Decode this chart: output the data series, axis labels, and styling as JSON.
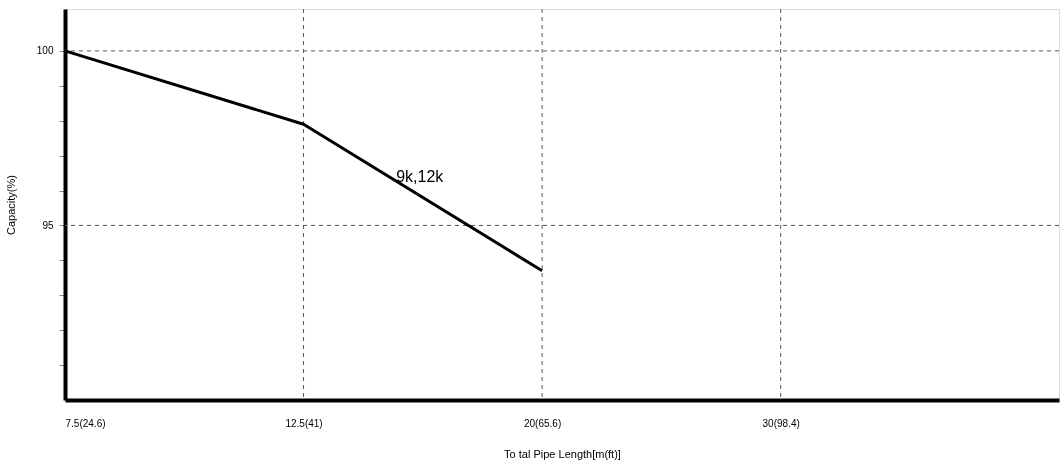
{
  "chart_data": {
    "type": "line",
    "xlabel": "To tal Pipe Length[m(ft)]",
    "ylabel": "Capacity(%)",
    "categories": [
      "7.5(24.6)",
      "12.5(41)",
      "20(65.6)",
      "30(98.4)"
    ],
    "series": [
      {
        "name": "9k,12k",
        "color": "#000000",
        "values": [
          100,
          97.9,
          93.7,
          null
        ]
      }
    ],
    "ylim": [
      90,
      101.2
    ],
    "yticks": [
      {
        "value": 91,
        "label": null
      },
      {
        "value": 92,
        "label": null
      },
      {
        "value": 93,
        "label": null
      },
      {
        "value": 94,
        "label": null
      },
      95,
      {
        "value": 96,
        "label": null
      },
      {
        "value": 97,
        "label": null
      },
      {
        "value": 98,
        "label": null
      },
      {
        "value": 99,
        "label": null
      },
      100
    ],
    "grid": true,
    "line_style": "solid",
    "marker": "none",
    "legend": false
  }
}
